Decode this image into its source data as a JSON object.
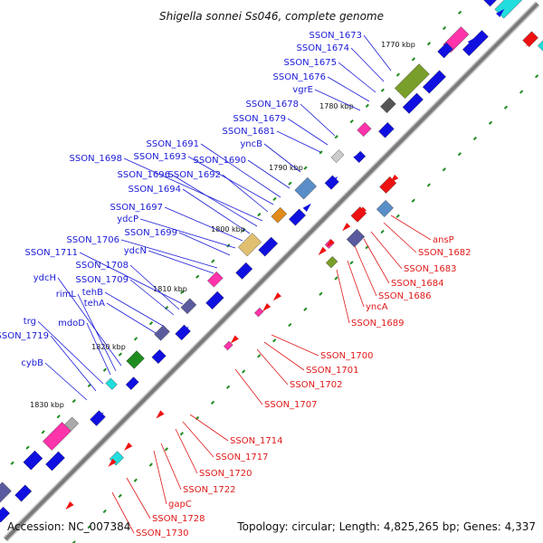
{
  "title": "Shigella sonnei Ss046, complete genome",
  "footer": {
    "accession": "Accession: NC_007384",
    "summary": "Topology: circular; Length: 4,825,265 bp; Genes: 4,337"
  },
  "ticks": [
    "1770 kbp",
    "1780 kbp",
    "1790 kbp",
    "1800 kbp",
    "1810 kbp",
    "1820 kbp",
    "1830 kbp"
  ],
  "forward_genes": [
    "SSON_1673",
    "SSON_1674",
    "SSON_1675",
    "SSON_1676",
    "vgrE",
    "SSON_1678",
    "SSON_1679",
    "SSON_1681",
    "yncB",
    "SSON_1690",
    "SSON_1691",
    "SSON_1693",
    "SSON_1692",
    "SSON_1698",
    "SSON_1696",
    "SSON_1694",
    "SSON_1697",
    "ydcP",
    "SSON_1699",
    "SSON_1706",
    "ydcN",
    "SSON_1711",
    "SSON_1708",
    "SSON_1709",
    "tehB",
    "tehA",
    "ydcH",
    "rimL",
    "mdoD",
    "trg",
    "SSON_1719",
    "cybB"
  ],
  "reverse_genes": [
    "ansP",
    "SSON_1682",
    "SSON_1683",
    "SSON_1684",
    "SSON_1686",
    "yncA",
    "SSON_1689",
    "SSON_1700",
    "SSON_1701",
    "SSON_1702",
    "SSON_1707",
    "SSON_1714",
    "SSON_1717",
    "SSON_1720",
    "SSON_1722",
    "gapC",
    "SSON_1728",
    "SSON_1730"
  ],
  "colors": {
    "backbone": "#7a7a7a",
    "label_forward": "#1a1ad6",
    "label_reverse": "#e01818",
    "cds": "#1010e0",
    "cds_reverse": "#ee1111",
    "rna_green": "#1e8c1e",
    "feature_magenta": "#ff33aa",
    "feature_cyan": "#22dddd",
    "feature_olive": "#7a9e2a",
    "feature_slate": "#5a5a9e",
    "feature_steel": "#5a8ec8"
  }
}
